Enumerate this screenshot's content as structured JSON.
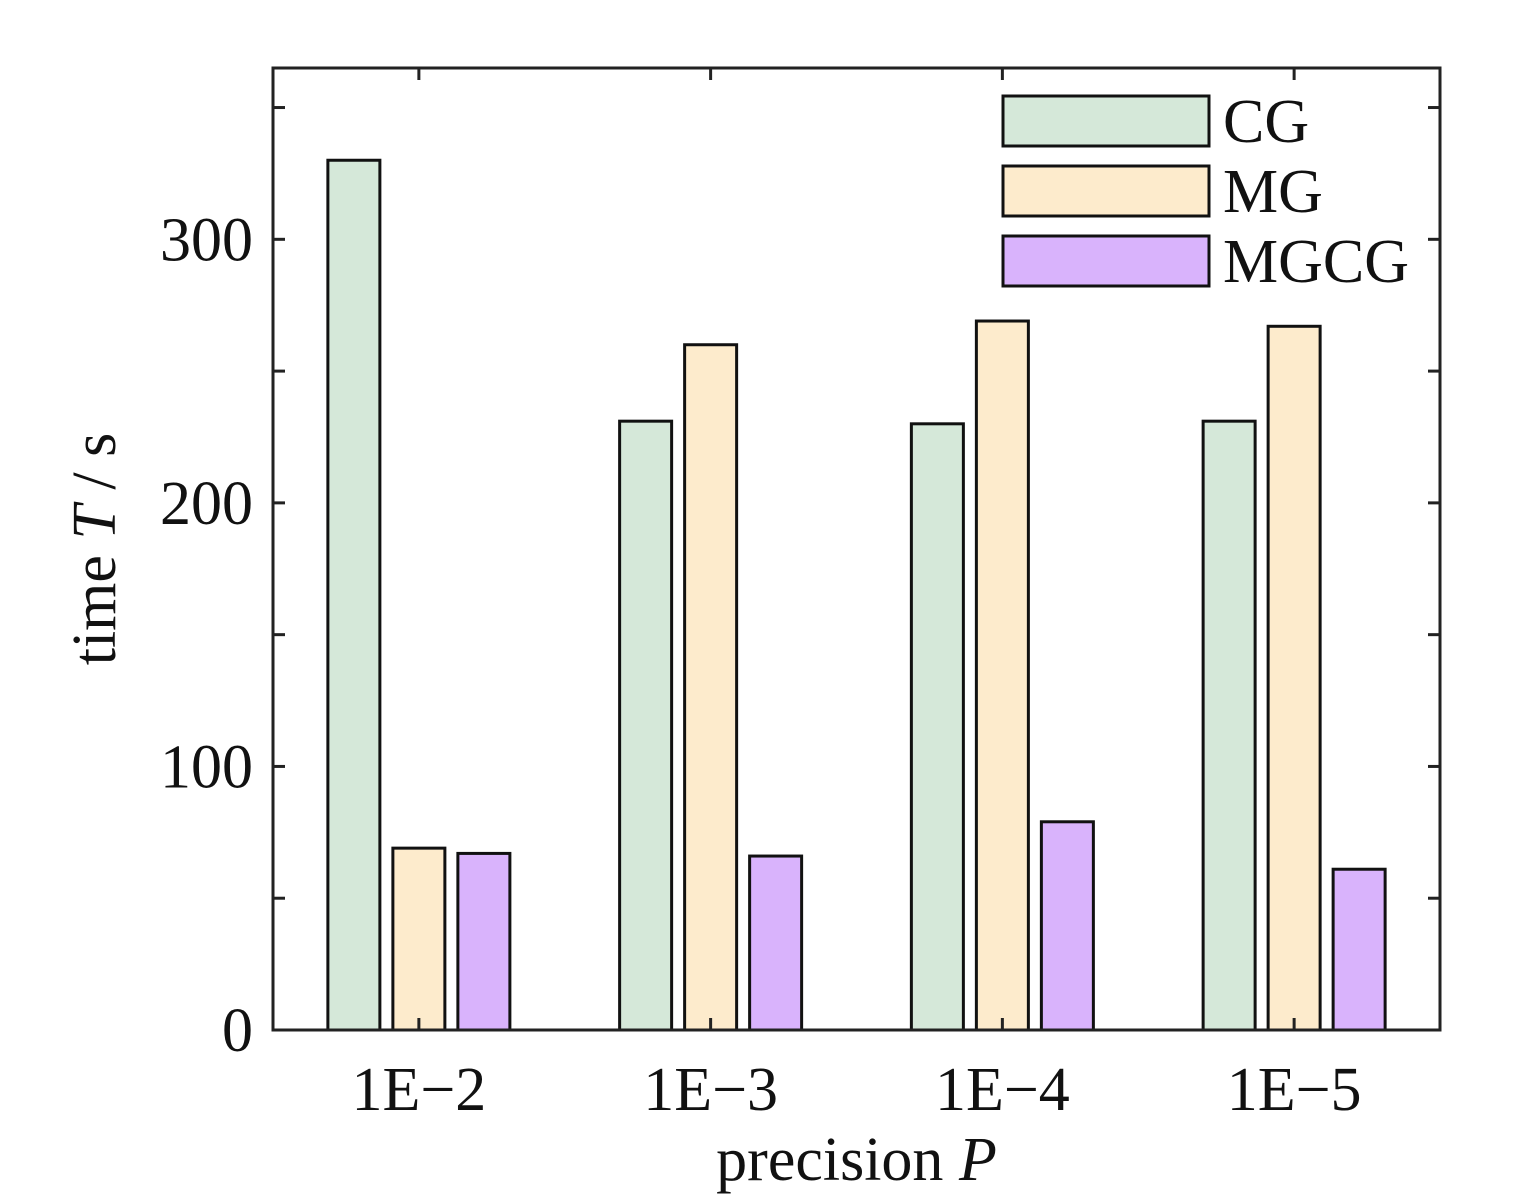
{
  "chart_data": {
    "type": "bar",
    "title": "",
    "xlabel": {
      "text": "precision ",
      "symbol": "P"
    },
    "ylabel": {
      "text": "time ",
      "symbol": "T",
      "unit": " / s"
    },
    "categories": [
      "1E−2",
      "1E−3",
      "1E−4",
      "1E−5"
    ],
    "ylim": [
      0,
      365
    ],
    "yticks": [
      0,
      50,
      100,
      150,
      200,
      250,
      300,
      350
    ],
    "ytick_labels": [
      "0",
      "",
      "100",
      "",
      "200",
      "",
      "300",
      ""
    ],
    "grid": false,
    "legend_position": "top-right",
    "series": [
      {
        "name": "CG",
        "color": "#d5e8d9",
        "values": [
          330,
          231,
          230,
          231
        ]
      },
      {
        "name": "MG",
        "color": "#fdebcc",
        "values": [
          69,
          260,
          269,
          267
        ]
      },
      {
        "name": "MGCG",
        "color": "#d9b3fc",
        "values": [
          67,
          66,
          79,
          61
        ]
      }
    ]
  }
}
